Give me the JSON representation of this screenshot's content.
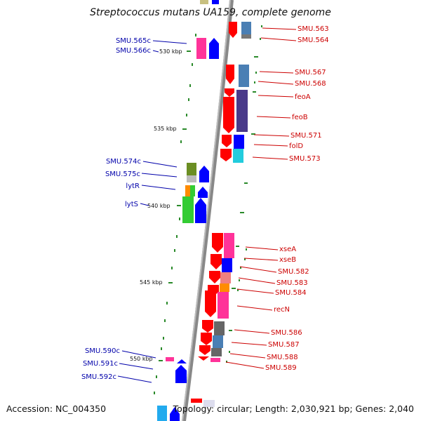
{
  "title": "Streptococcus mutans UA159, complete genome",
  "accession": "Accession: NC_004350",
  "topology": "Topology: circular; Length: 2,030,921 bp; Genes: 2,040",
  "ticks": [
    "530 kbp",
    "535 kbp",
    "540 kbp",
    "545 kbp",
    "550 kbp"
  ],
  "left_labels": [
    "SMU.565c",
    "SMU.566c",
    "SMU.574c",
    "SMU.575c",
    "lytR",
    "lytS",
    "SMU.590c",
    "SMU.591c",
    "SMU.592c"
  ],
  "right_labels": [
    "SMU.563",
    "SMU.564",
    "SMU.567",
    "SMU.568",
    "feoA",
    "feoB",
    "SMU.571",
    "folD",
    "SMU.573",
    "xseA",
    "xseB",
    "SMU.582",
    "SMU.583",
    "SMU.584",
    "recN",
    "SMU.586",
    "SMU.587",
    "SMU.588",
    "SMU.589"
  ],
  "colors": {
    "forward_label": "#cc0000",
    "reverse_label": "#0000aa",
    "forward_gene": "#ff0000",
    "reverse_gene": "#0000ff",
    "backbone": "#888888",
    "tick_mark": "#228b22"
  }
}
